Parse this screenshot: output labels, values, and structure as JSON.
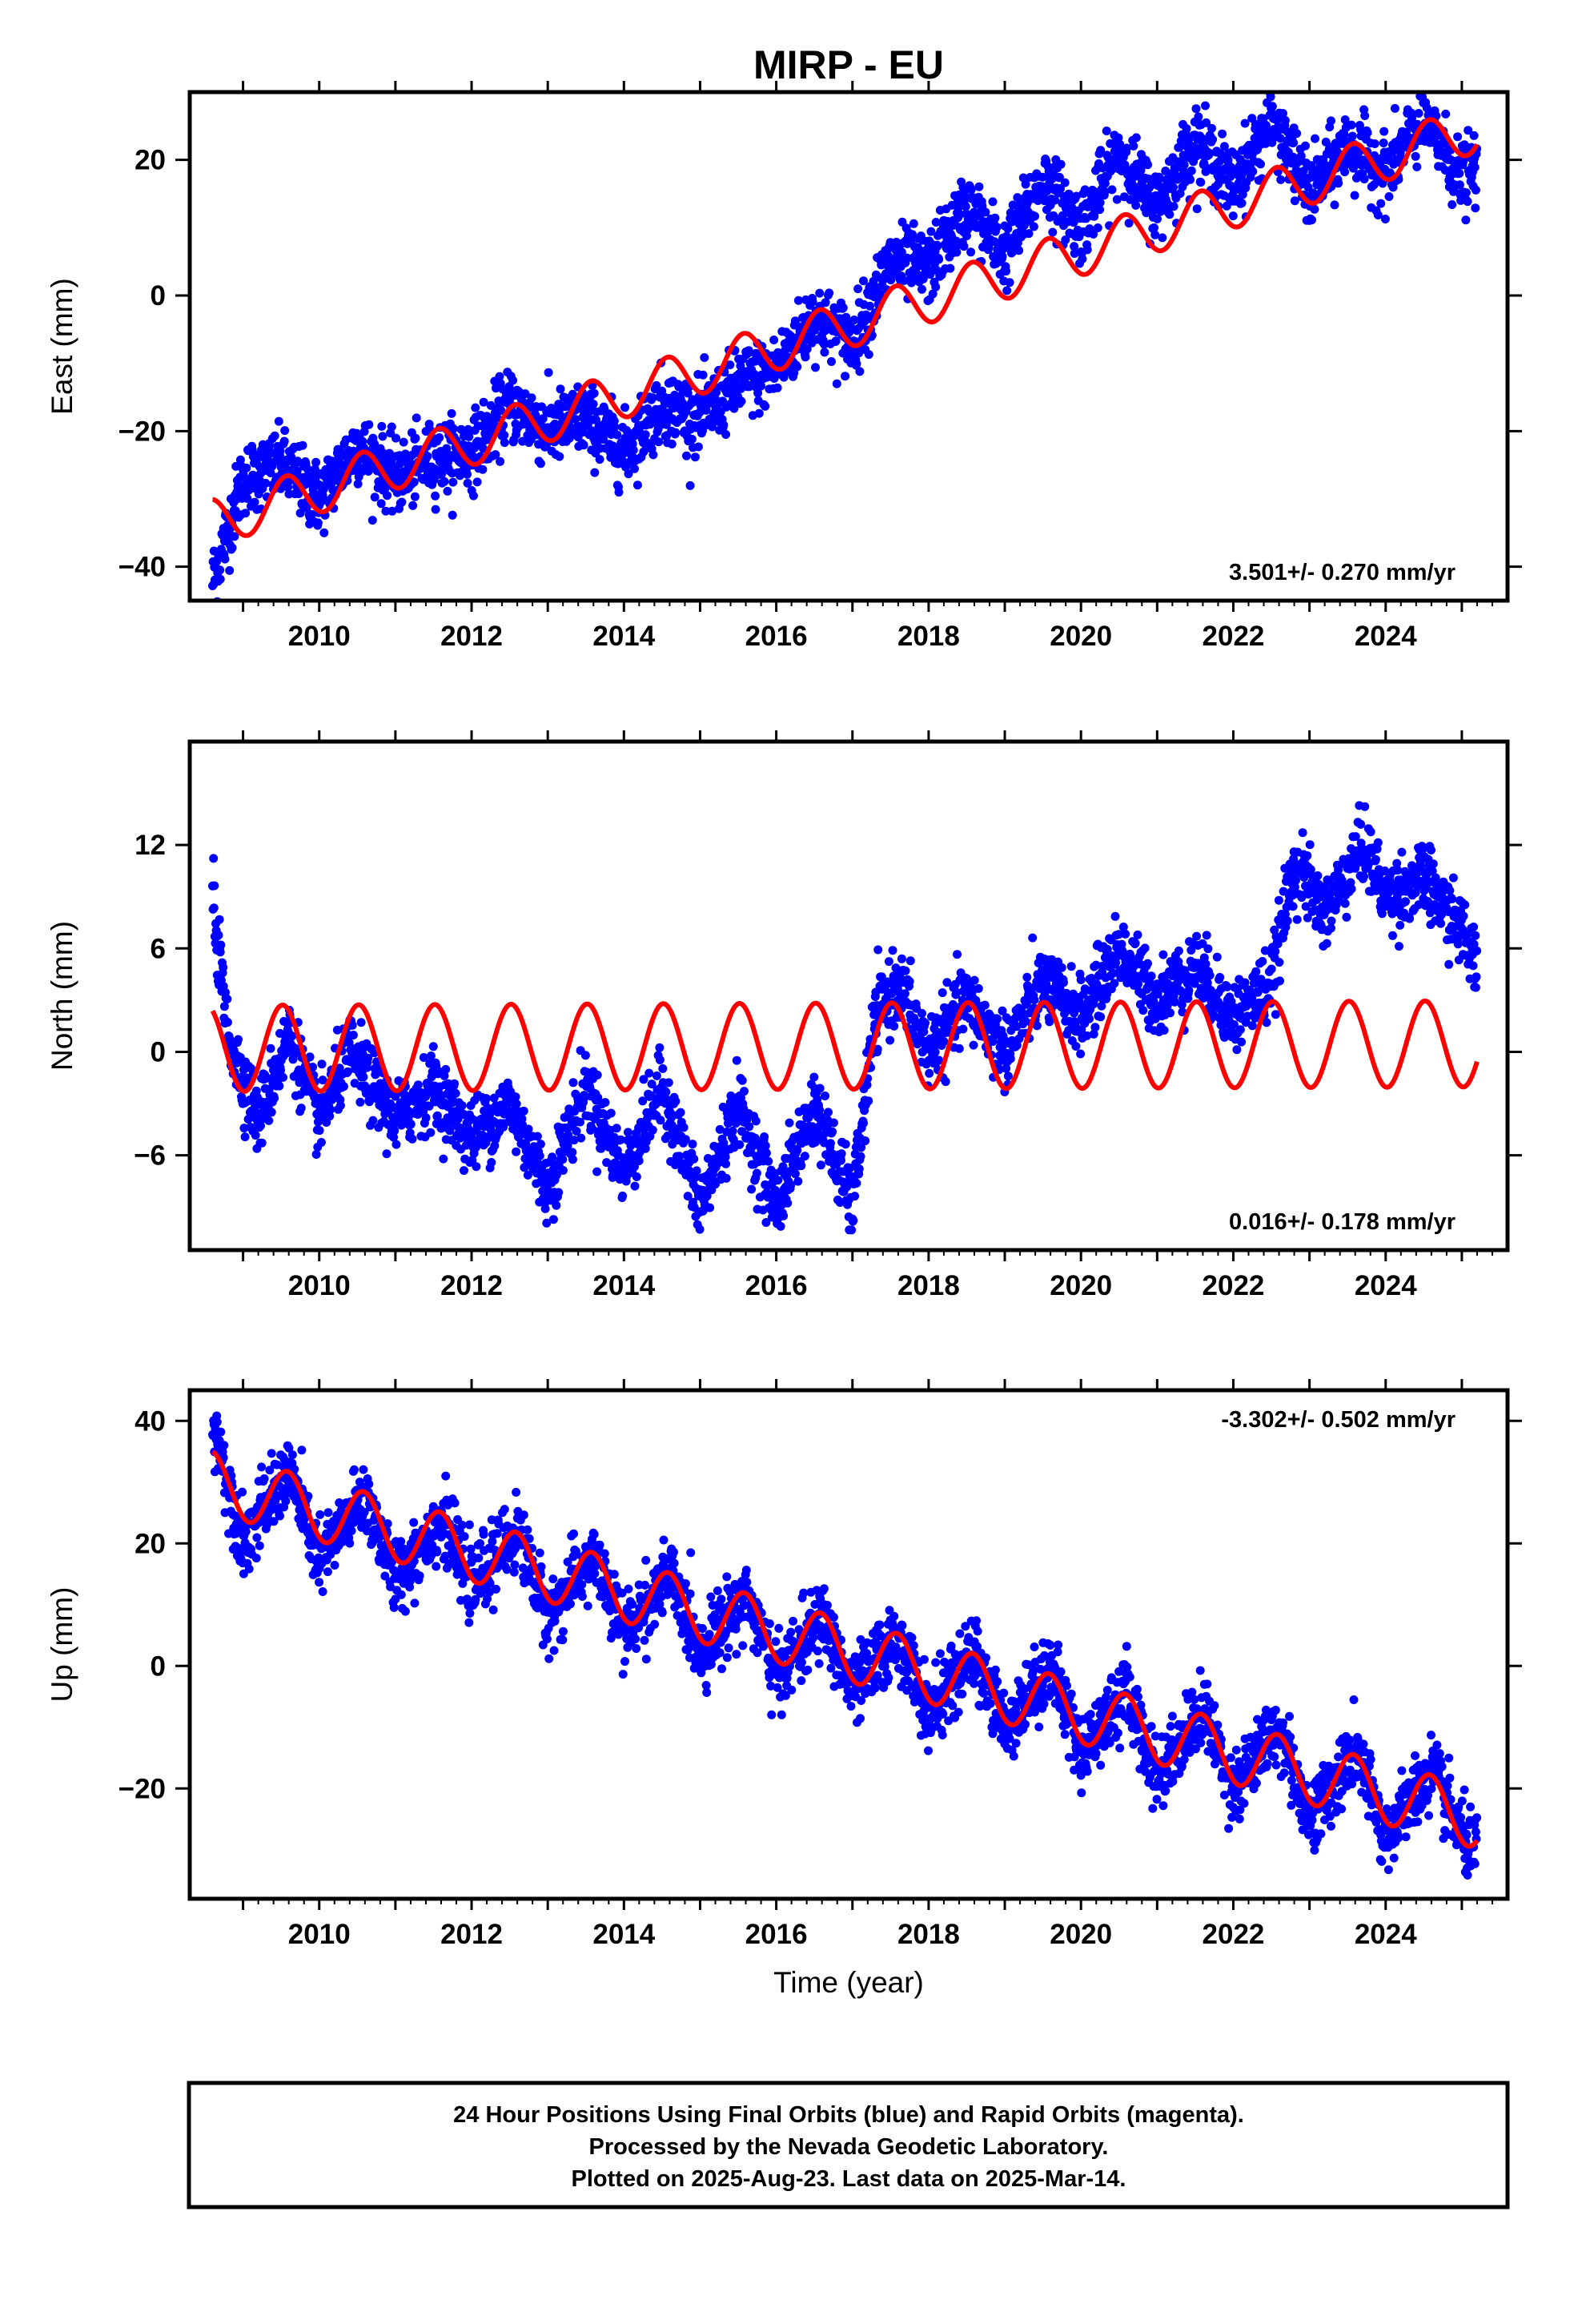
{
  "title": "MIRP - EU",
  "x_axis_label": "Time (year)",
  "x_ticks": [
    "2010",
    "2012",
    "2014",
    "2016",
    "2018",
    "2020",
    "2022",
    "2024"
  ],
  "footer": [
    "24 Hour Positions Using Final Orbits (blue) and Rapid Orbits (magenta).",
    "Processed by the Nevada Geodetic Laboratory.",
    "Plotted on 2025-Aug-23. Last data on 2025-Mar-14."
  ],
  "colors": {
    "data": "#0000ff",
    "model": "#ff0000",
    "frame": "#000000"
  },
  "chart_data": [
    {
      "type": "scatter",
      "component": "east",
      "ylabel": "East (mm)",
      "xlim": [
        2008.3,
        2025.6
      ],
      "ylim": [
        -45,
        30
      ],
      "yticks": [
        -40,
        -20,
        0,
        20
      ],
      "rate_text": "3.501+/- 0.270 mm/yr",
      "rate_position": "bottom-right",
      "series": [
        {
          "role": "data",
          "x": [
            2008.6,
            2009.0,
            2009.5,
            2010.0,
            2010.5,
            2011.0,
            2011.5,
            2012.0,
            2012.5,
            2013.0,
            2013.5,
            2014.0,
            2014.5,
            2015.0,
            2015.5,
            2016.0,
            2016.5,
            2017.0,
            2017.5,
            2018.0,
            2018.5,
            2019.0,
            2019.5,
            2020.0,
            2020.5,
            2021.0,
            2021.5,
            2022.0,
            2022.5,
            2023.0,
            2023.5,
            2024.0,
            2024.5,
            2025.0,
            2025.2
          ],
          "y": [
            -42,
            -27,
            -25,
            -30,
            -22,
            -27,
            -24,
            -23,
            -16,
            -20,
            -18,
            -23,
            -16,
            -18,
            -13,
            -11,
            -3,
            -7,
            5,
            4,
            13,
            6,
            17,
            10,
            21,
            13,
            23,
            16,
            26,
            15,
            22,
            18,
            26,
            17,
            19
          ]
        },
        {
          "role": "model",
          "amplitude": 3.5,
          "intercept_2008_6": -33.5,
          "rate": 3.501,
          "phase": 4.3
        }
      ]
    },
    {
      "type": "scatter",
      "component": "north",
      "ylabel": "North (mm)",
      "xlim": [
        2008.3,
        2025.6
      ],
      "ylim": [
        -11.5,
        18
      ],
      "yticks": [
        -6,
        0,
        6,
        12
      ],
      "rate_text": "0.016+/- 0.178 mm/yr",
      "rate_position": "bottom-right",
      "series": [
        {
          "role": "data",
          "x": [
            2008.6,
            2008.8,
            2009.2,
            2009.6,
            2010.0,
            2010.4,
            2011.0,
            2011.5,
            2012.0,
            2012.5,
            2013.0,
            2013.5,
            2014.0,
            2014.5,
            2015.0,
            2015.5,
            2016.0,
            2016.5,
            2017.0,
            2017.3,
            2017.6,
            2018.0,
            2018.5,
            2019.0,
            2019.5,
            2020.0,
            2020.5,
            2021.0,
            2021.5,
            2022.0,
            2022.5,
            2022.8,
            2023.2,
            2023.7,
            2024.0,
            2024.5,
            2025.0,
            2025.2
          ],
          "y": [
            9,
            1,
            -4,
            1,
            -4,
            0,
            -4,
            -2,
            -5,
            -3,
            -8,
            -2,
            -7,
            -2,
            -9,
            -3,
            -9,
            -3,
            -9,
            2,
            4,
            0,
            3,
            0,
            4,
            2,
            6,
            3,
            5,
            2,
            4,
            11,
            8,
            12,
            9,
            10,
            7,
            5
          ]
        },
        {
          "role": "model",
          "amplitude": 2.5,
          "intercept_2008_6": 0.2,
          "rate": 0.016,
          "phase": 4.6
        }
      ]
    },
    {
      "type": "scatter",
      "component": "up",
      "ylabel": "Up (mm)",
      "xlim": [
        2008.3,
        2025.6
      ],
      "ylim": [
        -38,
        45
      ],
      "yticks": [
        -20,
        0,
        20,
        40
      ],
      "rate_text": "-3.302+/- 0.502 mm/yr",
      "rate_position": "top-right",
      "series": [
        {
          "role": "data",
          "x": [
            2008.6,
            2009.0,
            2009.6,
            2010.0,
            2010.6,
            2011.0,
            2011.6,
            2012.0,
            2012.6,
            2013.0,
            2013.6,
            2014.0,
            2014.6,
            2015.0,
            2015.6,
            2016.0,
            2016.6,
            2017.0,
            2017.6,
            2018.0,
            2018.6,
            2019.0,
            2019.6,
            2020.0,
            2020.6,
            2021.0,
            2021.6,
            2022.0,
            2022.6,
            2023.0,
            2023.6,
            2024.0,
            2024.6,
            2025.0,
            2025.2
          ],
          "y": [
            40,
            20,
            32,
            17,
            28,
            14,
            24,
            13,
            22,
            8,
            18,
            5,
            15,
            2,
            12,
            -2,
            8,
            -4,
            5,
            -8,
            2,
            -10,
            0,
            -14,
            -4,
            -18,
            -7,
            -20,
            -10,
            -25,
            -14,
            -28,
            -17,
            -28,
            -30
          ]
        },
        {
          "role": "model",
          "amplitude": 5.0,
          "intercept_2008_6": 30.0,
          "rate": -3.302,
          "phase": 4.2
        }
      ]
    }
  ]
}
